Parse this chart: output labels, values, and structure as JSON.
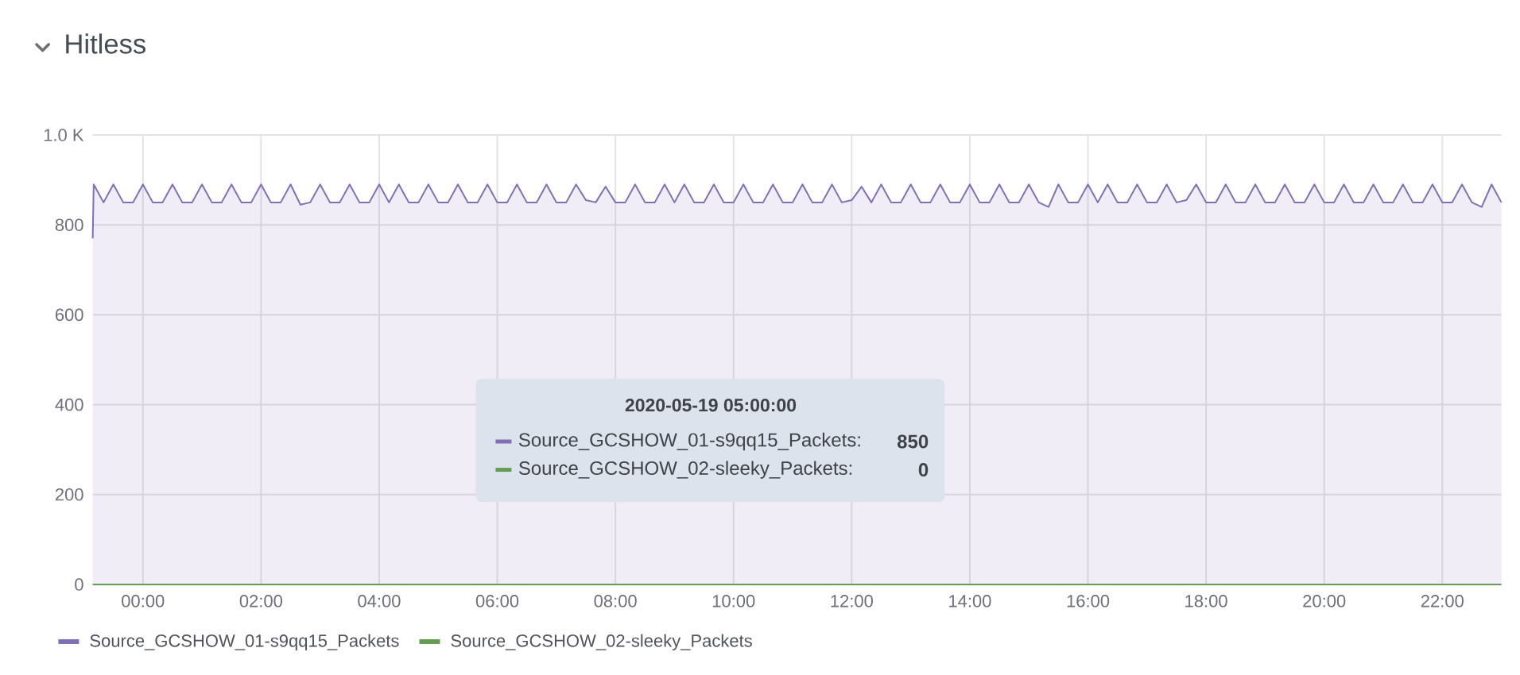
{
  "chart_data": {
    "type": "area",
    "title": "Hitless",
    "x": [
      "2020-05-18T23:09",
      "2020-05-18T23:10",
      "2020-05-18T23:20",
      "2020-05-18T23:30",
      "2020-05-18T23:40",
      "2020-05-18T23:50",
      "2020-05-19T00:00",
      "2020-05-19T00:10",
      "2020-05-19T00:20",
      "2020-05-19T00:30",
      "2020-05-19T00:40",
      "2020-05-19T00:50",
      "2020-05-19T01:00",
      "2020-05-19T01:10",
      "2020-05-19T01:20",
      "2020-05-19T01:30",
      "2020-05-19T01:40",
      "2020-05-19T01:50",
      "2020-05-19T02:00",
      "2020-05-19T02:10",
      "2020-05-19T02:20",
      "2020-05-19T02:30",
      "2020-05-19T02:40",
      "2020-05-19T02:50",
      "2020-05-19T03:00",
      "2020-05-19T03:10",
      "2020-05-19T03:20",
      "2020-05-19T03:30",
      "2020-05-19T03:40",
      "2020-05-19T03:50",
      "2020-05-19T04:00",
      "2020-05-19T04:10",
      "2020-05-19T04:20",
      "2020-05-19T04:30",
      "2020-05-19T04:40",
      "2020-05-19T04:50",
      "2020-05-19T05:00",
      "2020-05-19T05:10",
      "2020-05-19T05:20",
      "2020-05-19T05:30",
      "2020-05-19T05:40",
      "2020-05-19T05:50",
      "2020-05-19T06:00",
      "2020-05-19T06:10",
      "2020-05-19T06:20",
      "2020-05-19T06:30",
      "2020-05-19T06:40",
      "2020-05-19T06:50",
      "2020-05-19T07:00",
      "2020-05-19T07:10",
      "2020-05-19T07:20",
      "2020-05-19T07:30",
      "2020-05-19T07:40",
      "2020-05-19T07:50",
      "2020-05-19T08:00",
      "2020-05-19T08:10",
      "2020-05-19T08:20",
      "2020-05-19T08:30",
      "2020-05-19T08:40",
      "2020-05-19T08:50",
      "2020-05-19T09:00",
      "2020-05-19T09:10",
      "2020-05-19T09:20",
      "2020-05-19T09:30",
      "2020-05-19T09:40",
      "2020-05-19T09:50",
      "2020-05-19T10:00",
      "2020-05-19T10:10",
      "2020-05-19T10:20",
      "2020-05-19T10:30",
      "2020-05-19T10:40",
      "2020-05-19T10:50",
      "2020-05-19T11:00",
      "2020-05-19T11:10",
      "2020-05-19T11:20",
      "2020-05-19T11:30",
      "2020-05-19T11:40",
      "2020-05-19T11:50",
      "2020-05-19T12:00",
      "2020-05-19T12:10",
      "2020-05-19T12:20",
      "2020-05-19T12:30",
      "2020-05-19T12:40",
      "2020-05-19T12:50",
      "2020-05-19T13:00",
      "2020-05-19T13:10",
      "2020-05-19T13:20",
      "2020-05-19T13:30",
      "2020-05-19T13:40",
      "2020-05-19T13:50",
      "2020-05-19T14:00",
      "2020-05-19T14:10",
      "2020-05-19T14:20",
      "2020-05-19T14:30",
      "2020-05-19T14:40",
      "2020-05-19T14:50",
      "2020-05-19T15:00",
      "2020-05-19T15:10",
      "2020-05-19T15:20",
      "2020-05-19T15:30",
      "2020-05-19T15:40",
      "2020-05-19T15:50",
      "2020-05-19T16:00",
      "2020-05-19T16:10",
      "2020-05-19T16:20",
      "2020-05-19T16:30",
      "2020-05-19T16:40",
      "2020-05-19T16:50",
      "2020-05-19T17:00",
      "2020-05-19T17:10",
      "2020-05-19T17:20",
      "2020-05-19T17:30",
      "2020-05-19T17:40",
      "2020-05-19T17:50",
      "2020-05-19T18:00",
      "2020-05-19T18:10",
      "2020-05-19T18:20",
      "2020-05-19T18:30",
      "2020-05-19T18:40",
      "2020-05-19T18:50",
      "2020-05-19T19:00",
      "2020-05-19T19:10",
      "2020-05-19T19:20",
      "2020-05-19T19:30",
      "2020-05-19T19:40",
      "2020-05-19T19:50",
      "2020-05-19T20:00",
      "2020-05-19T20:10",
      "2020-05-19T20:20",
      "2020-05-19T20:30",
      "2020-05-19T20:40",
      "2020-05-19T20:50",
      "2020-05-19T21:00",
      "2020-05-19T21:10",
      "2020-05-19T21:20",
      "2020-05-19T21:30",
      "2020-05-19T21:40",
      "2020-05-19T21:50",
      "2020-05-19T22:00",
      "2020-05-19T22:10",
      "2020-05-19T22:20",
      "2020-05-19T22:30",
      "2020-05-19T22:40",
      "2020-05-19T22:50",
      "2020-05-19T23:00"
    ],
    "series": [
      {
        "name": "Source_GCSHOW_01-s9qq15_Packets",
        "color": "#806eb7",
        "values": [
          770,
          890,
          850,
          890,
          850,
          850,
          890,
          850,
          850,
          890,
          850,
          850,
          890,
          850,
          850,
          890,
          850,
          850,
          890,
          850,
          850,
          890,
          845,
          850,
          890,
          850,
          850,
          890,
          850,
          850,
          890,
          850,
          890,
          850,
          850,
          890,
          850,
          850,
          890,
          850,
          850,
          890,
          850,
          850,
          890,
          850,
          850,
          890,
          850,
          850,
          890,
          855,
          850,
          885,
          850,
          850,
          890,
          850,
          850,
          890,
          850,
          890,
          850,
          850,
          890,
          850,
          850,
          890,
          850,
          850,
          890,
          850,
          850,
          890,
          850,
          850,
          890,
          850,
          855,
          885,
          850,
          890,
          850,
          850,
          890,
          850,
          850,
          890,
          850,
          850,
          890,
          850,
          850,
          890,
          850,
          850,
          890,
          850,
          840,
          890,
          850,
          850,
          890,
          850,
          890,
          850,
          850,
          890,
          850,
          850,
          890,
          850,
          855,
          890,
          850,
          850,
          890,
          850,
          850,
          890,
          850,
          850,
          890,
          850,
          850,
          890,
          850,
          850,
          890,
          850,
          850,
          890,
          850,
          850,
          890,
          850,
          850,
          890,
          850,
          850,
          890,
          850,
          840,
          890,
          850
        ]
      },
      {
        "name": "Source_GCSHOW_02-sleeky_Packets",
        "color": "#629e51",
        "type": "line",
        "x": [
          "2020-05-18T23:09",
          "2020-05-19T23:00"
        ],
        "values": [
          0,
          0
        ]
      }
    ],
    "xlim": [
      "2020-05-18T23:09",
      "2020-05-19T23:00"
    ],
    "xticks": [
      {
        "value": "2020-05-19T00:00",
        "label": "00:00"
      },
      {
        "value": "2020-05-19T02:00",
        "label": "02:00"
      },
      {
        "value": "2020-05-19T04:00",
        "label": "04:00"
      },
      {
        "value": "2020-05-19T06:00",
        "label": "06:00"
      },
      {
        "value": "2020-05-19T08:00",
        "label": "08:00"
      },
      {
        "value": "2020-05-19T10:00",
        "label": "10:00"
      },
      {
        "value": "2020-05-19T12:00",
        "label": "12:00"
      },
      {
        "value": "2020-05-19T14:00",
        "label": "14:00"
      },
      {
        "value": "2020-05-19T16:00",
        "label": "16:00"
      },
      {
        "value": "2020-05-19T18:00",
        "label": "18:00"
      },
      {
        "value": "2020-05-19T20:00",
        "label": "20:00"
      },
      {
        "value": "2020-05-19T22:00",
        "label": "22:00"
      }
    ],
    "ylim": [
      0,
      1000
    ],
    "yticks": [
      0,
      200,
      400,
      600,
      800,
      {
        "value": 1000,
        "label": "1.0 K"
      }
    ],
    "grid": true,
    "legend": "bottom",
    "annotations": [
      "2020-05-19 05:00:00",
      "Source_GCSHOW_01-s9qq15_Packets:",
      "850",
      "Source_GCSHOW_02-sleeky_Packets:",
      "0"
    ]
  }
}
